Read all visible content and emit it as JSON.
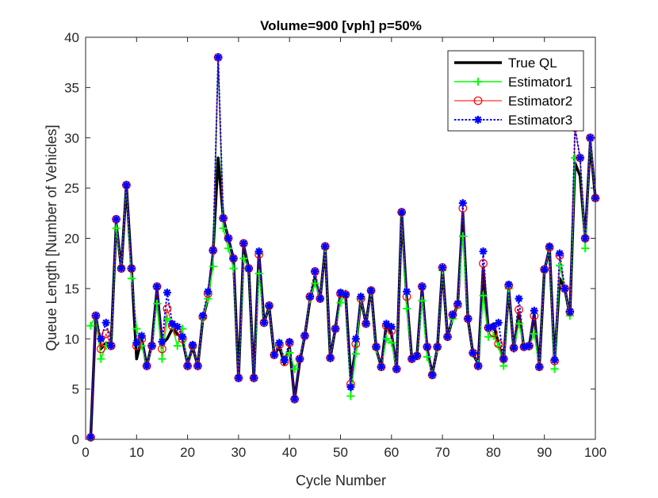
{
  "chart_data": {
    "type": "line",
    "title": "Volume=900 [vph] p=50%",
    "xlabel": "Cycle Number",
    "ylabel": "Queue Length [Number of Vehicles]",
    "xlim": [
      0,
      100
    ],
    "ylim": [
      0,
      40
    ],
    "xticks": [
      0,
      10,
      20,
      30,
      40,
      50,
      60,
      70,
      80,
      90,
      100
    ],
    "yticks": [
      0,
      5,
      10,
      15,
      20,
      25,
      30,
      35,
      40
    ],
    "legend_position": "top-right",
    "x": [
      1,
      2,
      3,
      4,
      5,
      6,
      7,
      8,
      9,
      10,
      11,
      12,
      13,
      14,
      15,
      16,
      17,
      18,
      19,
      20,
      21,
      22,
      23,
      24,
      25,
      26,
      27,
      28,
      29,
      30,
      31,
      32,
      33,
      34,
      35,
      36,
      37,
      38,
      39,
      40,
      41,
      42,
      43,
      44,
      45,
      46,
      47,
      48,
      49,
      50,
      51,
      52,
      53,
      54,
      55,
      56,
      57,
      58,
      59,
      60,
      61,
      62,
      63,
      64,
      65,
      66,
      67,
      68,
      69,
      70,
      71,
      72,
      73,
      74,
      75,
      76,
      77,
      78,
      79,
      80,
      81,
      82,
      83,
      84,
      85,
      86,
      87,
      88,
      89,
      90,
      91,
      92,
      93,
      94,
      95,
      96,
      97,
      98,
      99,
      100
    ],
    "series": [
      {
        "name": "True QL",
        "color": "#000000",
        "marker": "none",
        "values": [
          0.2,
          12.3,
          9,
          9.6,
          9.5,
          21.5,
          17,
          25.3,
          17,
          8,
          10,
          7.3,
          9.5,
          15,
          9.5,
          10,
          11,
          10.5,
          10,
          7.5,
          9.2,
          7.3,
          12,
          14,
          18.5,
          28,
          22,
          20,
          18,
          6.1,
          19.3,
          17,
          6.1,
          18.5,
          11.6,
          13.2,
          8.4,
          9.2,
          7.5,
          9.2,
          4,
          7.7,
          10.3,
          13.8,
          16,
          14,
          19,
          8.1,
          11,
          14.5,
          14.5,
          6,
          9,
          14,
          11.5,
          15,
          9,
          7.2,
          11.5,
          10.5,
          7,
          22.5,
          14,
          8,
          8.3,
          15,
          9,
          6.5,
          9,
          17,
          10.2,
          12,
          13.5,
          22.5,
          12,
          8.5,
          7.5,
          17,
          11,
          11.5,
          9.5,
          7.8,
          15,
          9,
          12.6,
          9.1,
          9.2,
          12.5,
          7.2,
          16.8,
          19,
          7.7,
          16,
          15,
          12.3,
          27.5,
          26.2,
          20,
          29.5,
          24
        ]
      },
      {
        "name": "Estimator1",
        "color": "#00ff00",
        "marker": "+",
        "values": [
          11.3,
          12.3,
          8,
          9.3,
          9.3,
          21,
          17.1,
          25.3,
          16,
          11,
          9.3,
          7.3,
          9.3,
          13.5,
          8,
          12,
          11.3,
          9.3,
          11,
          7.3,
          9.3,
          7.3,
          12,
          14,
          17.2,
          38,
          21,
          19,
          17,
          6.1,
          18,
          17,
          6.1,
          16.5,
          11.6,
          13.2,
          8.4,
          9.6,
          8,
          8.6,
          7,
          8,
          10.3,
          14,
          15.5,
          14,
          19,
          8.1,
          11,
          13.6,
          14.5,
          4.3,
          8.5,
          14,
          11.5,
          14.7,
          9,
          7.2,
          10,
          9.6,
          7,
          22.5,
          13,
          8,
          8.3,
          13.8,
          8.2,
          6.5,
          9,
          16.8,
          10.2,
          12,
          13.5,
          20.2,
          12,
          8.5,
          7.5,
          14.3,
          10.2,
          10.3,
          9.3,
          7.3,
          15,
          9,
          11.5,
          9.3,
          9.2,
          10.5,
          7.2,
          16.8,
          19,
          7,
          17.3,
          15,
          12.3,
          28,
          28,
          19,
          30,
          24
        ]
      },
      {
        "name": "Estimator2",
        "color": "#ff0000",
        "marker": "o",
        "values": [
          0.2,
          12.3,
          9,
          10.5,
          9.3,
          21.9,
          17,
          25.3,
          17,
          9.3,
          10,
          7.3,
          9.3,
          15.2,
          9,
          13,
          11.3,
          10.7,
          10,
          7.3,
          9.3,
          7.3,
          12.2,
          14.5,
          18.8,
          38,
          22,
          20,
          18,
          6.1,
          19.5,
          17,
          6.1,
          18.4,
          11.6,
          13.3,
          8.4,
          9.4,
          7.7,
          9.6,
          4,
          8,
          10.3,
          14.2,
          16.7,
          14,
          19.2,
          8.1,
          11,
          14.5,
          14.4,
          5.5,
          9.5,
          14,
          11.5,
          14.8,
          9.2,
          7.2,
          11.3,
          10.8,
          7,
          22.6,
          14.2,
          8,
          8.3,
          15.2,
          9.2,
          6.4,
          9.2,
          17.1,
          10.2,
          12.4,
          13.4,
          23,
          12,
          8.6,
          7.3,
          17.5,
          11.1,
          10.6,
          9.5,
          8,
          15.3,
          9.1,
          12.9,
          9.2,
          9.3,
          12.3,
          7.2,
          16.9,
          19.1,
          7.8,
          18.3,
          15,
          12.7,
          31,
          28,
          20,
          30,
          24
        ]
      },
      {
        "name": "Estimator3",
        "color": "#0000ff",
        "marker": "*",
        "values": [
          0.2,
          12.3,
          10,
          11.6,
          9.3,
          21.9,
          17,
          25.3,
          17,
          9.6,
          10.3,
          7.3,
          9.3,
          15.2,
          9.7,
          14.6,
          11.5,
          11.2,
          10.2,
          7.3,
          9.4,
          7.3,
          12.3,
          14.7,
          18.8,
          38,
          22,
          20,
          18,
          6.1,
          19.5,
          17,
          6.1,
          18.7,
          11.6,
          13.3,
          8.4,
          9.6,
          7.9,
          9.7,
          4,
          8,
          10.3,
          14.2,
          16.7,
          14,
          19.2,
          8.1,
          11,
          14.6,
          14.4,
          5.2,
          10,
          14.2,
          11.5,
          14.8,
          9.2,
          7.2,
          11.5,
          11.2,
          7,
          22.6,
          14.7,
          8,
          8.3,
          15.2,
          9.2,
          6.4,
          9.2,
          17.1,
          10.2,
          12.4,
          13.5,
          23.5,
          12,
          8.6,
          7.3,
          18.7,
          11.1,
          11.2,
          11.6,
          8,
          15.4,
          9.1,
          14,
          9.2,
          9.3,
          12.8,
          7.2,
          16.9,
          19.2,
          7.9,
          18.5,
          15,
          12.7,
          31,
          28,
          20,
          30,
          24
        ]
      }
    ]
  }
}
